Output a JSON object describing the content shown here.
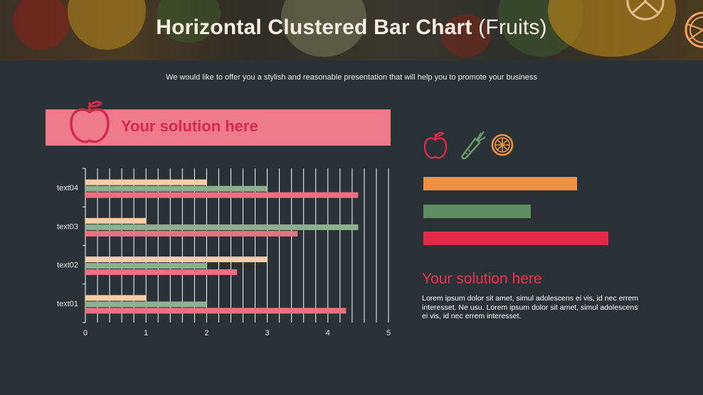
{
  "header": {
    "title_main": "Horizontal Clustered Bar Chart",
    "title_paren": "(Fruits)",
    "subtitle": "We would like to offer you a stylish and reasonable presentation that will help you to promote your business"
  },
  "banner": {
    "text": "Your solution here",
    "icon": "apple-icon"
  },
  "right_panel": {
    "icons": [
      "apple-icon",
      "carrot-icon",
      "orange-slice-icon"
    ],
    "title": "Your solution here",
    "body": "Lorem ipsum dolor sit amet, simul adolescens ei vis, id nec errem interesset. Ne usu. Lorem ipsum dolor sit amet, simul adolescens ei vis, id nec errem interesset.",
    "bars": [
      {
        "fraction": 0.83,
        "color": "#f0913f"
      },
      {
        "fraction": 0.58,
        "color": "#5f8d62"
      },
      {
        "fraction": 1.0,
        "color": "#e22948"
      }
    ]
  },
  "chart_data": {
    "type": "bar",
    "orientation": "horizontal",
    "categories": [
      "text01",
      "text02",
      "text03",
      "text04"
    ],
    "series": [
      {
        "values": [
          1,
          3,
          1,
          2
        ],
        "color": "#f9cea7"
      },
      {
        "values": [
          2,
          2,
          4.5,
          3
        ],
        "color": "#8bb08e"
      },
      {
        "values": [
          4.3,
          2.5,
          3.5,
          4.5
        ],
        "color": "#ec6f82"
      }
    ],
    "xlim": [
      0,
      5
    ],
    "xticks": [
      "0",
      "1",
      "2",
      "3",
      "4",
      "5"
    ],
    "grid": true
  }
}
